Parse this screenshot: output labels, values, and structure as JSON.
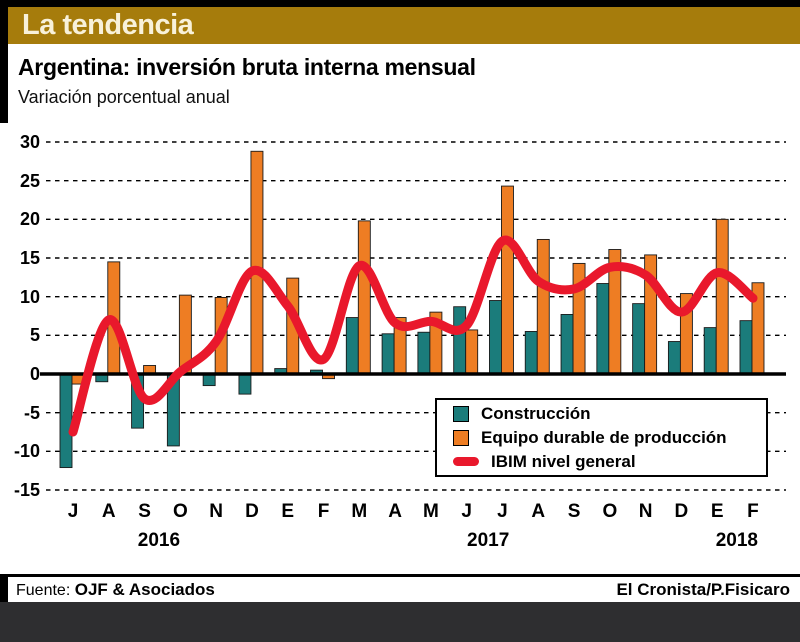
{
  "banner": {
    "title": "La tendencia"
  },
  "header": {
    "title": "Argentina: inversión bruta interna mensual",
    "subtitle": "Variación porcentual anual"
  },
  "footer": {
    "source_label": "Fuente:",
    "source": "OJF & Asociados",
    "credit": "El Cronista/P.Fisicaro"
  },
  "colors": {
    "banner_gold": "#A67C0C",
    "banner_text": "#F8F1DA",
    "construccion_teal": "#1B7C7B",
    "equipo_orange": "#EE7D23",
    "ibim_red": "#E9182C",
    "bottom_band": "#2E2E30"
  },
  "chart_data": {
    "type": "bar",
    "title": "Argentina: inversión bruta interna mensual",
    "subtitle": "Variación porcentual anual",
    "xlabel": "",
    "ylabel": "Variación porcentual anual",
    "ylim": [
      -15,
      30
    ],
    "ytick_step": 5,
    "grid": "dashed-horizontal",
    "legend_position": "inside-bottom-center",
    "categories": [
      "J",
      "A",
      "S",
      "O",
      "N",
      "D",
      "E",
      "F",
      "M",
      "A",
      "M",
      "J",
      "J",
      "A",
      "S",
      "O",
      "N",
      "D",
      "E",
      "F"
    ],
    "x_axis_years": [
      {
        "label": "2016",
        "at_index": 2.4
      },
      {
        "label": "2017",
        "at_index": 11.6
      },
      {
        "label": "2018",
        "at_index": 18.55
      }
    ],
    "series": [
      {
        "name": "Construcción",
        "type": "bar",
        "color": "#1B7C7B",
        "values": [
          -12.1,
          -1.0,
          -7.0,
          -9.3,
          -1.5,
          -2.6,
          0.7,
          0.5,
          7.3,
          5.2,
          5.4,
          8.7,
          9.5,
          5.5,
          7.7,
          11.7,
          9.1,
          4.2,
          6.0,
          6.9
        ]
      },
      {
        "name": "Equipo durable de producción",
        "type": "bar",
        "color": "#EE7D23",
        "values": [
          -1.3,
          14.5,
          1.1,
          10.2,
          9.9,
          28.8,
          12.4,
          -0.6,
          19.8,
          7.3,
          8.0,
          5.7,
          24.3,
          17.4,
          14.3,
          16.1,
          15.4,
          10.4,
          20.0,
          11.8
        ]
      },
      {
        "name": "IBIM nivel general",
        "type": "line",
        "color": "#E9182C",
        "values": [
          -7.5,
          7.0,
          -3.2,
          0.3,
          4.2,
          13.3,
          8.8,
          1.9,
          14.0,
          6.6,
          6.8,
          6.3,
          17.2,
          12.0,
          11.0,
          13.8,
          12.8,
          8.0,
          13.1,
          9.8
        ]
      }
    ]
  }
}
